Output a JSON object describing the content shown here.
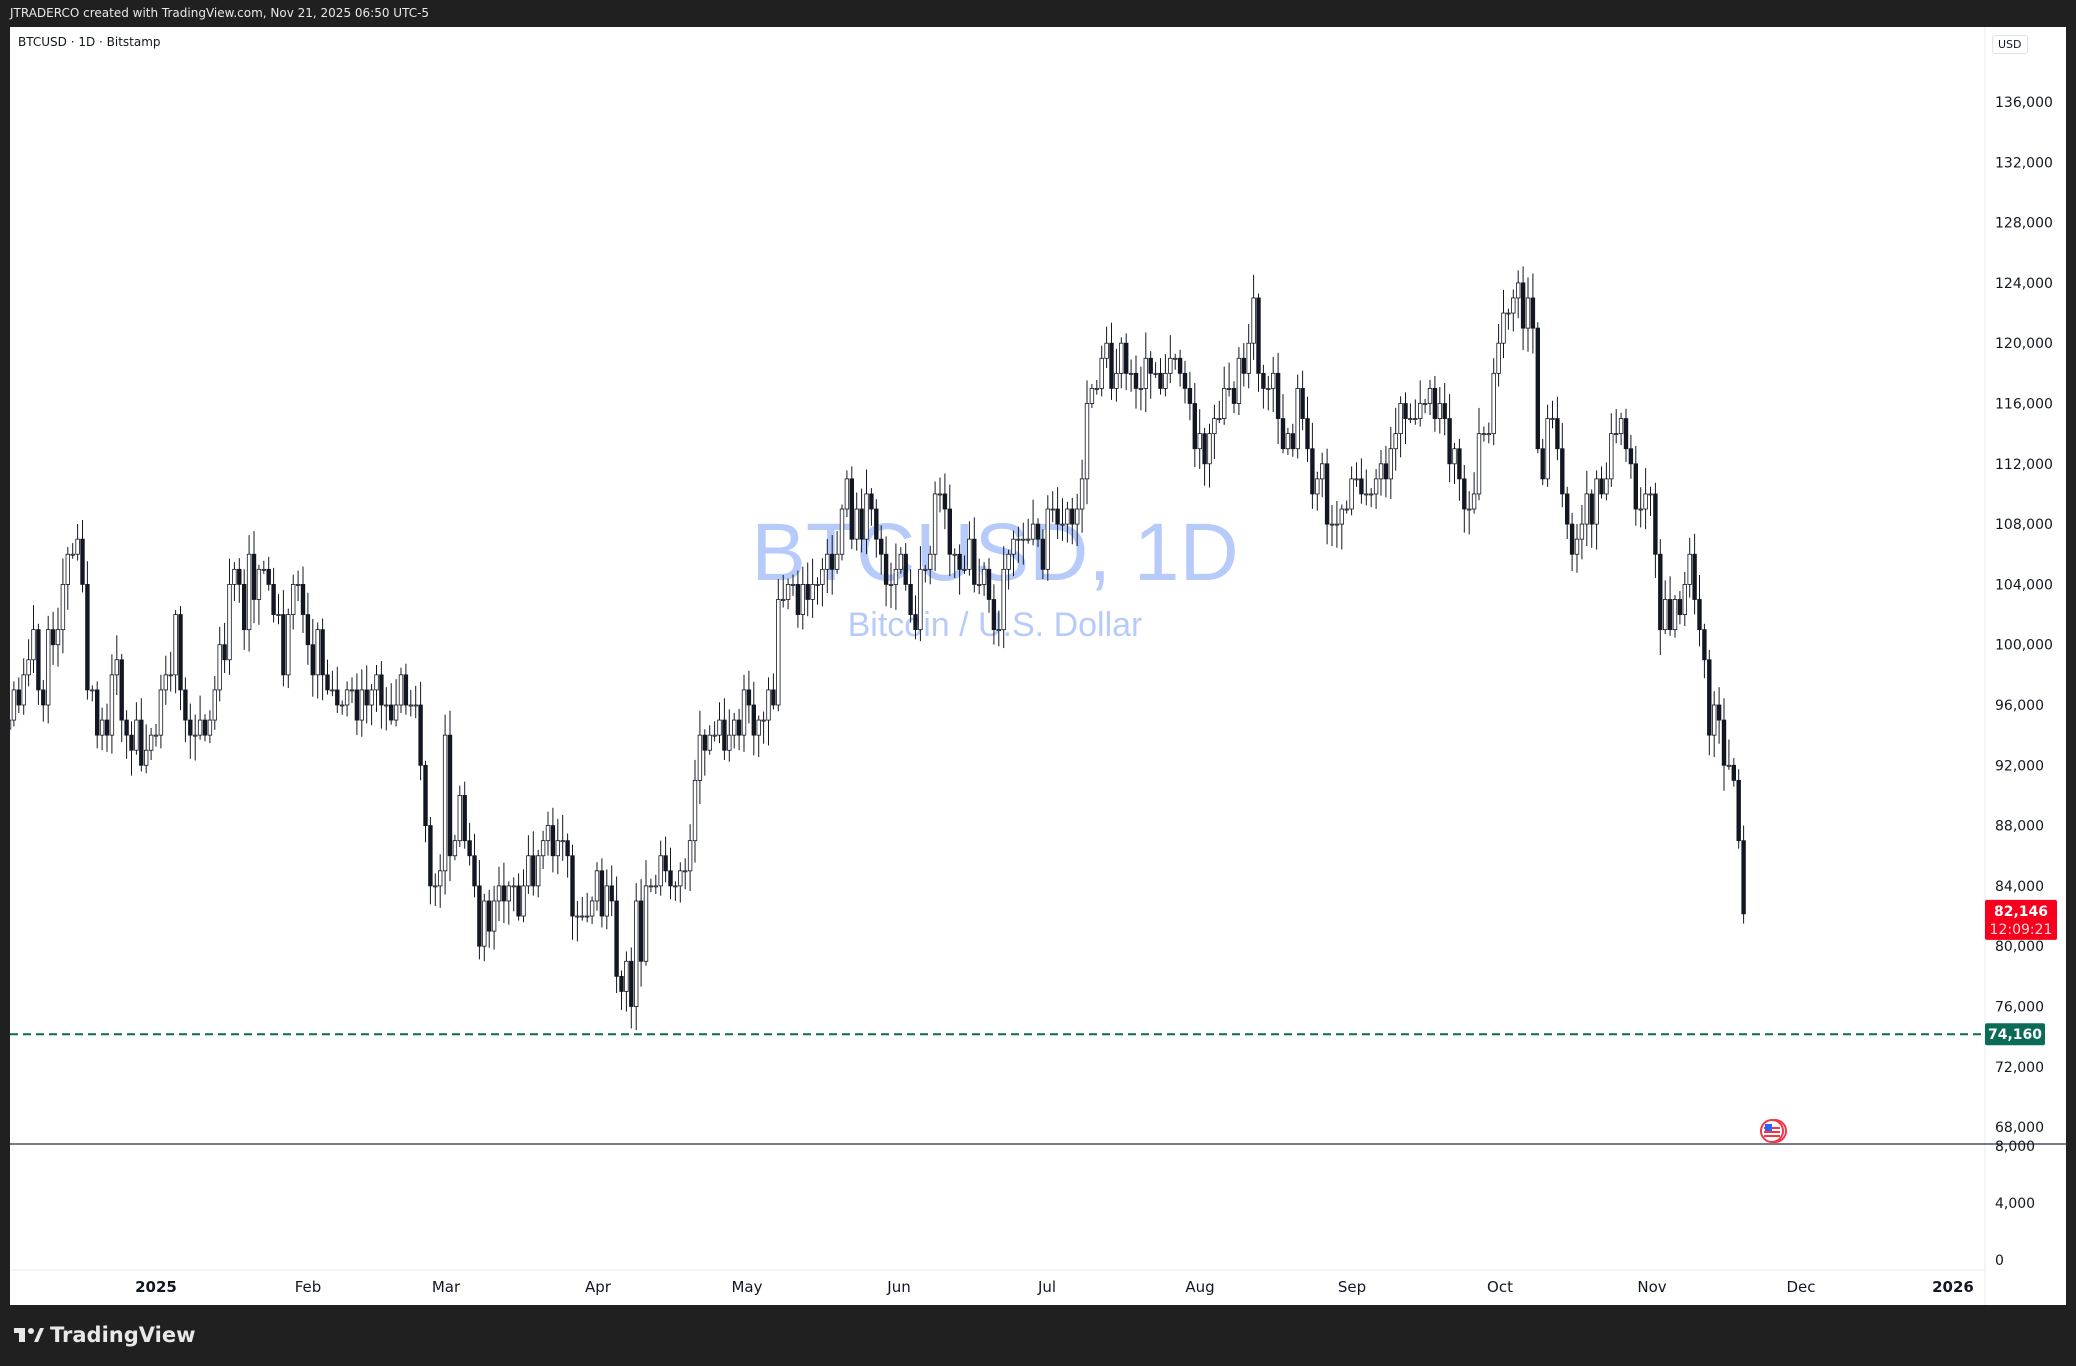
{
  "header": {
    "credit": "JTRADERCO created with TradingView.com, Nov 21, 2025 06:50 UTC-5"
  },
  "legend": {
    "symbol": "BTCUSD · 1D · Bitstamp"
  },
  "price_axis": {
    "currency": "USD"
  },
  "watermark": {
    "title": "BTCUSD, 1D",
    "subtitle": "Bitcoin / U.S. Dollar"
  },
  "footer": {
    "brand": "TradingView"
  },
  "colors": {
    "up": "#ffffff",
    "down": "#131722",
    "wick": "#131722",
    "last_price": "#f7001d",
    "level": "#0a6b57",
    "watermark": "#b7cbfb"
  },
  "chart_data": {
    "type": "candlestick",
    "first_date": "2024-12-02",
    "closes_thousands": [
      95,
      97,
      96,
      98,
      99,
      101,
      97,
      96,
      101,
      100,
      101,
      104,
      106,
      106,
      107,
      104,
      97,
      97,
      94,
      95,
      94,
      98,
      99,
      95,
      94,
      93,
      95,
      92,
      93,
      94,
      94,
      97,
      98,
      98,
      102,
      97,
      95,
      94,
      94,
      95,
      94,
      95,
      97,
      100,
      99,
      104,
      105,
      104,
      101,
      106,
      103,
      105,
      105,
      104,
      102,
      102,
      98,
      102,
      104,
      104,
      102,
      100,
      98,
      101,
      98,
      97,
      97,
      96,
      96,
      97,
      97,
      95,
      97,
      96,
      97,
      98,
      96,
      96,
      95,
      96,
      98,
      96,
      96,
      96,
      92,
      88,
      84,
      84,
      85,
      94,
      86,
      87,
      90,
      87,
      86,
      84,
      80,
      83,
      81,
      83,
      84,
      83,
      84,
      84,
      82,
      84,
      86,
      84,
      86,
      87,
      88,
      86,
      87,
      87,
      86,
      82,
      82,
      82,
      82,
      83,
      85,
      82,
      84,
      83,
      78,
      77,
      79,
      76,
      83,
      79,
      84,
      84,
      84,
      86,
      85,
      84,
      84,
      85,
      85,
      87,
      91,
      94,
      93,
      94,
      94,
      95,
      93,
      94,
      95,
      94,
      97,
      96,
      94,
      95,
      95,
      97,
      96,
      103,
      103,
      104,
      104,
      102,
      104,
      103,
      104,
      104,
      105,
      106,
      105,
      106,
      109,
      111,
      107,
      109,
      107,
      110,
      109,
      107,
      106,
      104,
      104,
      105,
      106,
      104,
      102,
      101,
      105,
      105,
      106,
      110,
      110,
      109,
      106,
      106,
      105,
      105,
      107,
      104,
      104,
      105,
      103,
      101,
      101,
      105,
      106,
      107,
      107,
      107,
      107,
      108,
      107,
      105,
      109,
      109,
      108,
      108,
      109,
      108,
      109,
      111,
      116,
      117,
      117,
      119,
      120,
      117,
      118,
      120,
      118,
      118,
      117,
      117,
      119,
      118,
      118,
      117,
      118,
      119,
      119,
      118,
      117,
      116,
      113,
      114,
      112,
      114,
      115,
      115,
      117,
      117,
      116,
      119,
      118,
      120,
      123,
      118,
      117,
      117,
      118,
      115,
      113,
      114,
      113,
      117,
      115,
      113,
      110,
      111,
      112,
      108,
      108,
      108,
      109,
      109,
      111,
      111,
      110,
      110,
      110,
      111,
      112,
      111,
      113,
      114,
      116,
      115,
      115,
      115,
      116,
      116,
      117,
      115,
      116,
      115,
      112,
      113,
      111,
      109,
      109,
      110,
      114,
      114,
      114,
      118,
      120,
      122,
      122,
      123,
      124,
      121,
      123,
      121,
      113,
      111,
      115,
      115,
      113,
      110,
      108,
      106,
      107,
      108,
      110,
      108,
      111,
      110,
      111,
      114,
      114,
      115,
      113,
      112,
      109,
      109,
      110,
      110,
      106,
      101,
      103,
      101,
      103,
      102,
      104,
      106,
      103,
      101,
      99,
      94,
      96,
      95,
      92,
      92,
      91,
      87,
      82.146
    ],
    "price_ticks": [
      "136,000",
      "132,000",
      "128,000",
      "124,000",
      "120,000",
      "116,000",
      "112,000",
      "108,000",
      "104,000",
      "100,000",
      "96,000",
      "92,000",
      "88,000",
      "84,000",
      "80,000",
      "76,000",
      "72,000",
      "68,000"
    ],
    "lower_pane_ticks": [
      "8,000",
      "4,000",
      "0"
    ],
    "time_ticks": [
      "2025",
      "Feb",
      "Mar",
      "Apr",
      "May",
      "Jun",
      "Jul",
      "Aug",
      "Sep",
      "Oct",
      "Nov",
      "Dec",
      "2026"
    ],
    "last_price": {
      "value": "82,146",
      "countdown": "12:09:21"
    },
    "horizontal_level": {
      "value": "74,160",
      "style": "dashed"
    }
  }
}
